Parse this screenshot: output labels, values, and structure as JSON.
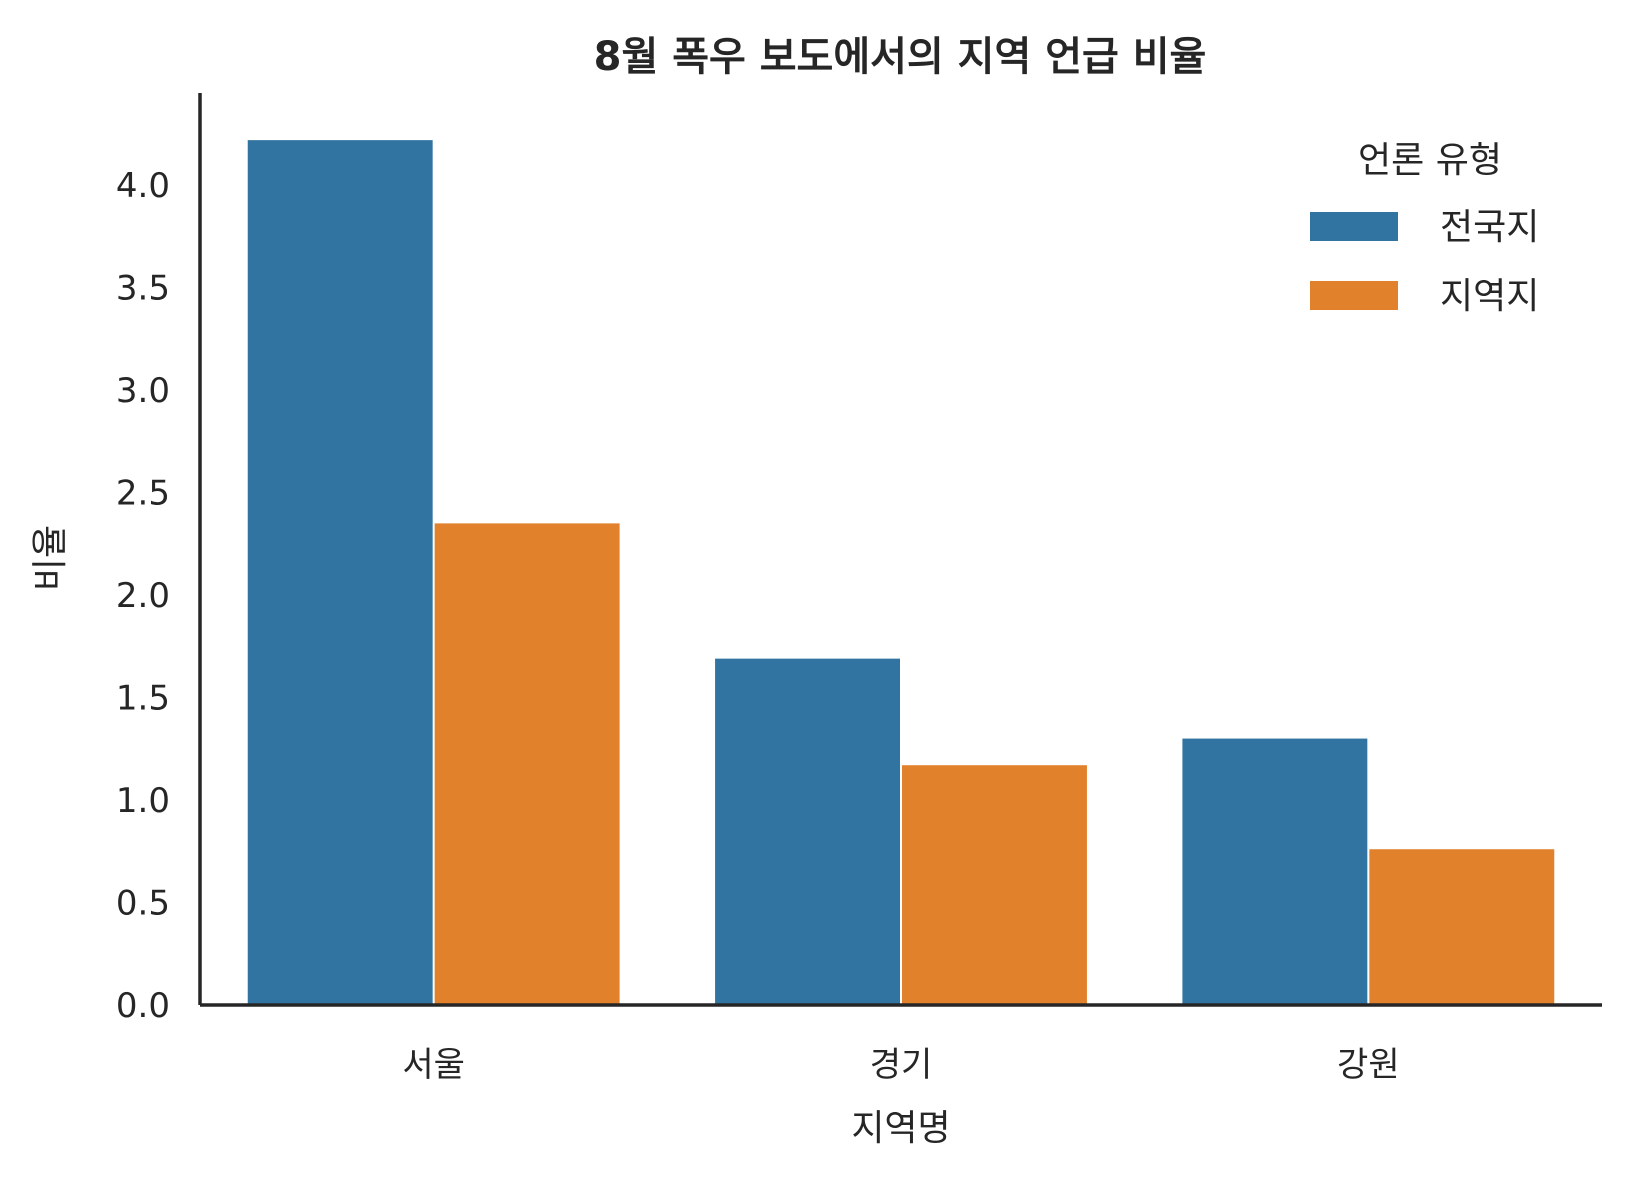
{
  "chart_data": {
    "type": "bar",
    "title": "8월 폭우 보도에서의 지역 언급 비율",
    "xlabel": "지역명",
    "ylabel": "비율",
    "categories": [
      "서울",
      "경기",
      "강원"
    ],
    "series": [
      {
        "name": "전국지",
        "color": "#3274a1",
        "values": [
          4.22,
          1.69,
          1.3
        ]
      },
      {
        "name": "지역지",
        "color": "#e1812c",
        "values": [
          2.35,
          1.17,
          0.76
        ]
      }
    ],
    "ylim": [
      0,
      4.45
    ],
    "yticks": [
      "0.0",
      "0.5",
      "1.0",
      "1.5",
      "2.0",
      "2.5",
      "3.0",
      "3.5",
      "4.0"
    ],
    "legend": {
      "title": "언론 유형",
      "placement": "top-right"
    },
    "grid": false
  }
}
